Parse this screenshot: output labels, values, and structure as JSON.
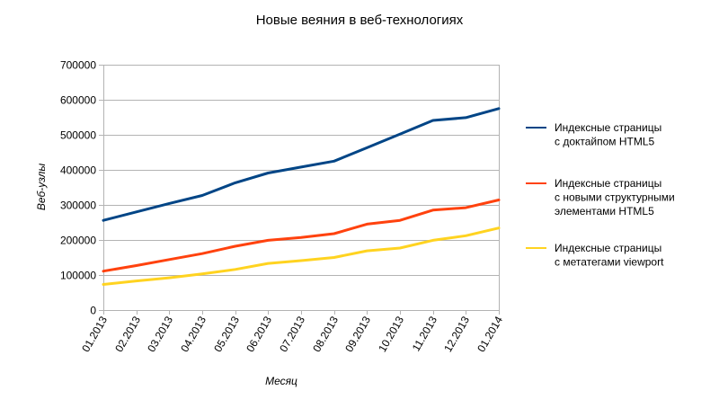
{
  "chart_data": {
    "type": "line",
    "title": "Новые веяния в веб-технологиях",
    "xlabel": "Месяц",
    "ylabel": "Веб-узлы",
    "ylim": [
      0,
      700000
    ],
    "yticks": [
      0,
      100000,
      200000,
      300000,
      400000,
      500000,
      600000,
      700000
    ],
    "ytick_labels": [
      "0",
      "100000",
      "200000",
      "300000",
      "400000",
      "500000",
      "600000",
      "700000"
    ],
    "grid": true,
    "legend_position": "right",
    "categories": [
      "01.2013",
      "02.2013",
      "03.2013",
      "04.2013",
      "05.2013",
      "06.2013",
      "07.2013",
      "08.2013",
      "09.2013",
      "10.2013",
      "11.2013",
      "12.2013",
      "01.2014"
    ],
    "series": [
      {
        "name": "Индексные страницы с доктайпом HTML5",
        "legend_lines": [
          "Индексные страницы",
          "с доктайпом HTML5"
        ],
        "color": "#004586",
        "values": [
          256000,
          280000,
          304000,
          327000,
          363000,
          391000,
          408000,
          425000,
          463000,
          502000,
          541000,
          549000,
          575000
        ]
      },
      {
        "name": "Индексные страницы с новыми структурными элементами HTML5",
        "legend_lines": [
          "Индексные страницы",
          "с новыми структурными",
          "элементами HTML5"
        ],
        "color": "#ff420e",
        "values": [
          111000,
          127000,
          144000,
          161000,
          182000,
          199000,
          207000,
          218000,
          245000,
          256000,
          285000,
          292000,
          314000
        ]
      },
      {
        "name": "Индексные страницы с метатегами viewport",
        "legend_lines": [
          "Индексные страницы",
          "с метатегами viewport"
        ],
        "color": "#ffd320",
        "values": [
          73000,
          83000,
          92000,
          103000,
          116000,
          133000,
          141000,
          150000,
          169000,
          177000,
          199000,
          212000,
          234000
        ]
      }
    ]
  }
}
